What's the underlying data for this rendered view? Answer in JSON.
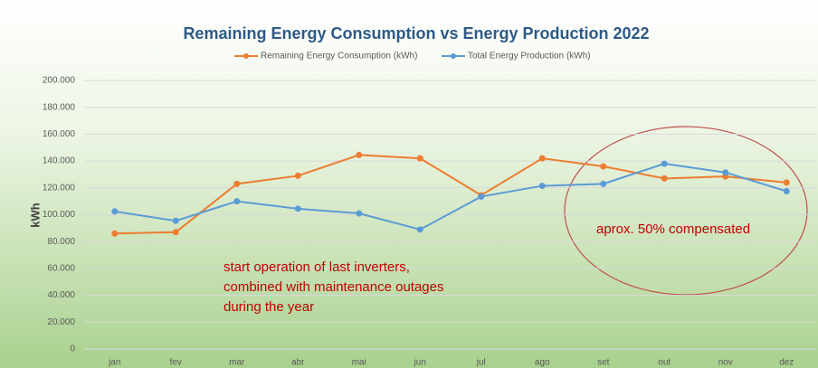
{
  "chart_data": {
    "type": "line",
    "title": "Remaining Energy Consumption vs Energy Production 2022",
    "y_label": "kWh",
    "categories": [
      "jan",
      "fev",
      "mar",
      "abr",
      "mai",
      "jun",
      "jul",
      "ago",
      "set",
      "out",
      "nov",
      "dez"
    ],
    "series": [
      {
        "name": "Remaining Energy Consumption (kWh)",
        "color": "#ed7d31",
        "values": [
          86000,
          87000,
          123000,
          129000,
          144500,
          142000,
          114500,
          142000,
          136000,
          127000,
          128500,
          124000
        ]
      },
      {
        "name": "Total Energy Production (kWh)",
        "color": "#5b9bd5",
        "values": [
          102500,
          95500,
          110000,
          104500,
          101000,
          89000,
          113500,
          121500,
          123000,
          138000,
          131500,
          117500
        ]
      }
    ],
    "ylim": [
      0,
      200000
    ],
    "yticks": [
      0,
      {
        "value": 20000,
        "label": "20.000"
      },
      {
        "value": 40000,
        "label": "40.000"
      },
      {
        "value": 60000,
        "label": "60.000"
      },
      {
        "value": 80000,
        "label": "80.000"
      },
      {
        "value": 100000,
        "label": "100.000"
      },
      {
        "value": 120000,
        "label": "120.000"
      },
      {
        "value": 140000,
        "label": "140.000"
      },
      {
        "value": 160000,
        "label": "160.000"
      },
      {
        "value": 180000,
        "label": "180.000"
      },
      {
        "value": 200000,
        "label": "200.000"
      }
    ],
    "grid": true,
    "legend": "top",
    "annotations": [
      [
        "start operation of last inverters,",
        "combined with maintenance outages",
        "during the year"
      ],
      [
        "aprox. 50% compensated"
      ]
    ]
  }
}
